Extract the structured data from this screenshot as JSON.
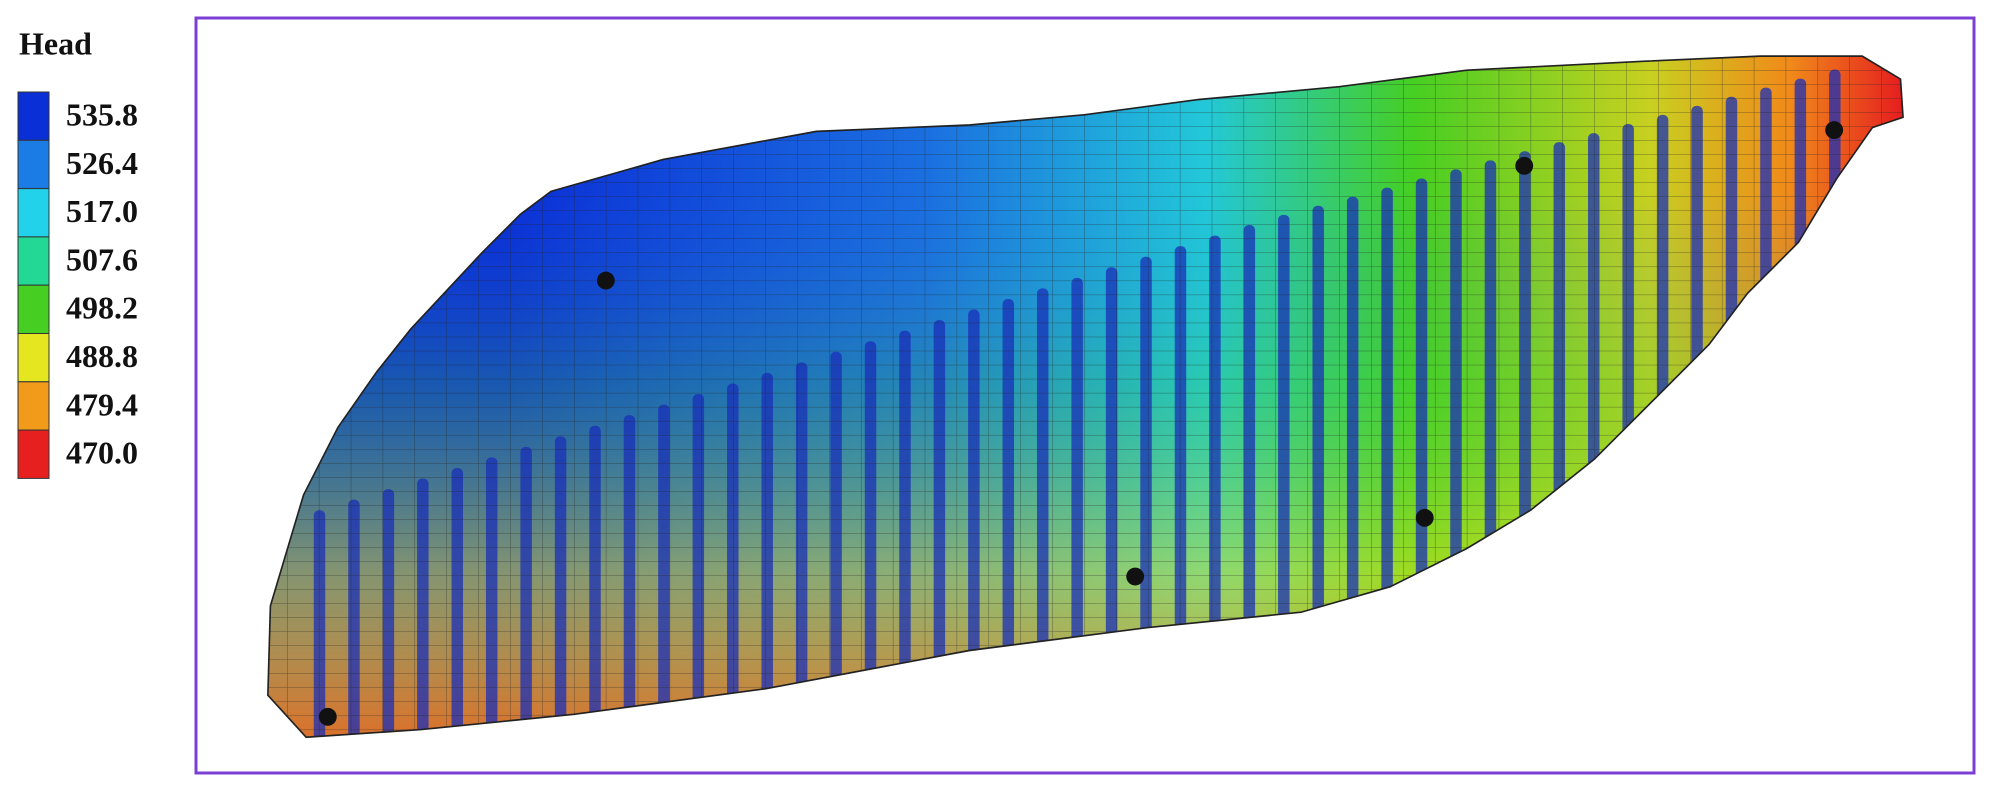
{
  "legend": {
    "title": "Head",
    "levels": [
      535.8,
      526.4,
      {
        "value": 517,
        "label": "517.0"
      },
      507.6,
      498.2,
      488.8,
      479.4,
      {
        "value": 470,
        "label": "470.0"
      }
    ],
    "colors": [
      "#0b2fd6",
      "#1b7ce6",
      "#22d2ea",
      "#22d894",
      "#46cf22",
      "#e6e620",
      "#f29a1a",
      "#e61f1f"
    ]
  }
}
